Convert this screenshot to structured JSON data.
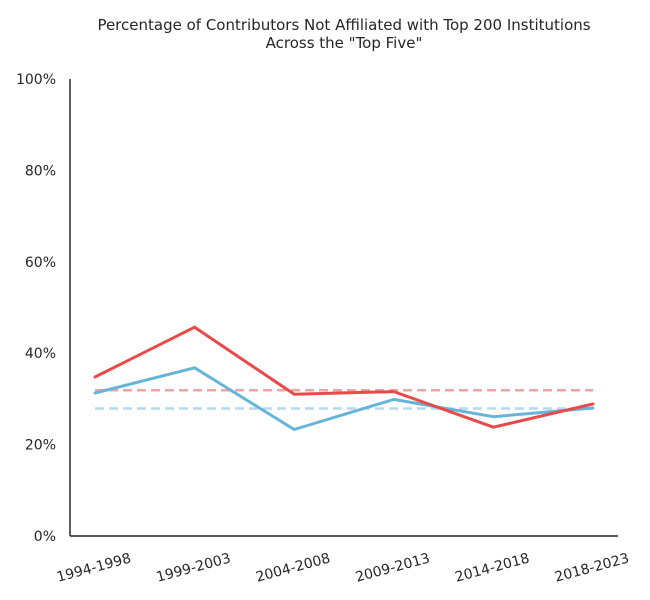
{
  "chart_data": {
    "type": "line",
    "title_lines": [
      "Percentage of Contributors Not Affiliated with Top 200 Institutions",
      "Across the \"Top Five\""
    ],
    "xlabel": "",
    "ylabel": "",
    "categories": [
      "1994-1998",
      "1999-2003",
      "2004-2008",
      "2009-2013",
      "2014-2018",
      "2018-2023"
    ],
    "y_ticks": [
      0,
      20,
      40,
      60,
      80,
      100
    ],
    "y_tick_labels": [
      "0%",
      "20%",
      "40%",
      "60%",
      "80%",
      "100%"
    ],
    "ylim": [
      0,
      100
    ],
    "grid": false,
    "legend": "none",
    "series": [
      {
        "values": [
          34.8,
          45.7,
          31.0,
          31.6,
          23.8,
          28.9
        ],
        "color": "#e84a4a"
      },
      {
        "values": [
          31.3,
          36.8,
          23.3,
          29.9,
          26.1,
          28.0
        ],
        "color": "#66b5d8"
      }
    ],
    "reference_lines": [
      {
        "value": 31.9,
        "color": "#f0a3a3"
      },
      {
        "value": 27.9,
        "color": "#b3daed"
      }
    ]
  }
}
